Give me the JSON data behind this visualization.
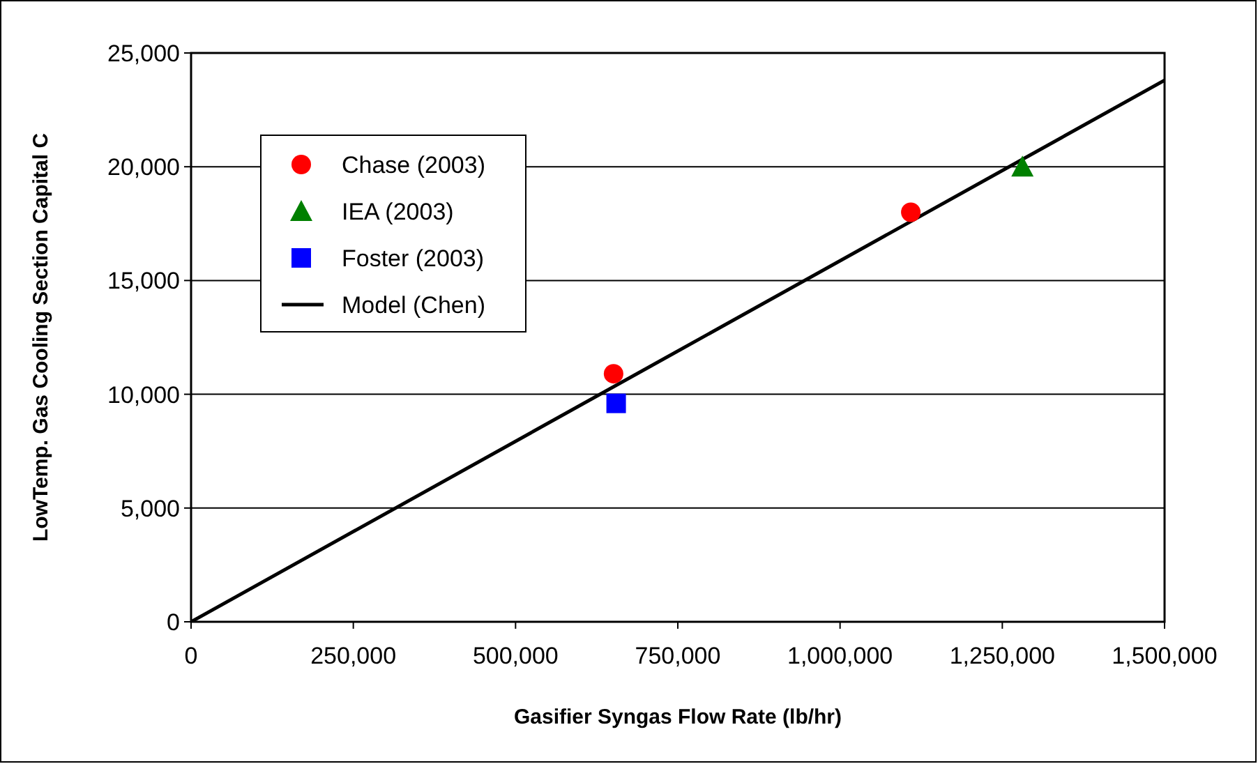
{
  "chart_data": {
    "type": "scatter",
    "xlabel": "Gasifier Syngas Flow Rate (lb/hr)",
    "ylabel": "LowTemp. Gas Cooling Section Capital C",
    "xlim": [
      0,
      1500000
    ],
    "ylim": [
      0,
      25000
    ],
    "xticks": [
      {
        "value": 0,
        "label": "0"
      },
      {
        "value": 250000,
        "label": "250,000"
      },
      {
        "value": 500000,
        "label": "500,000"
      },
      {
        "value": 750000,
        "label": "750,000"
      },
      {
        "value": 1000000,
        "label": "1,000,000"
      },
      {
        "value": 1250000,
        "label": "1,250,000"
      },
      {
        "value": 1500000,
        "label": "1,500,000"
      }
    ],
    "yticks": [
      {
        "value": 0,
        "label": "0"
      },
      {
        "value": 5000,
        "label": "5,000"
      },
      {
        "value": 10000,
        "label": "10,000"
      },
      {
        "value": 15000,
        "label": "15,000"
      },
      {
        "value": 20000,
        "label": "20,000"
      },
      {
        "value": 25000,
        "label": "25,000"
      }
    ],
    "grid": "y",
    "legend": "top left",
    "series": [
      {
        "name": "Chase (2003)",
        "color": "#ff0000",
        "marker": "circle",
        "x": [
          651000,
          1109000
        ],
        "values": [
          10900,
          18000
        ]
      },
      {
        "name": "IEA (2003)",
        "color": "#008000",
        "marker": "triangle",
        "x": [
          1281000
        ],
        "values": [
          20000
        ]
      },
      {
        "name": "Foster (2003)",
        "color": "#0000ff",
        "marker": "square",
        "x": [
          655000
        ],
        "values": [
          9600
        ]
      },
      {
        "name": "Model (Chen)",
        "type": "line",
        "color": "#000000",
        "marker": "none",
        "line_style": "solid",
        "x": [
          0,
          1500000
        ],
        "values": [
          0,
          23800
        ]
      }
    ]
  }
}
